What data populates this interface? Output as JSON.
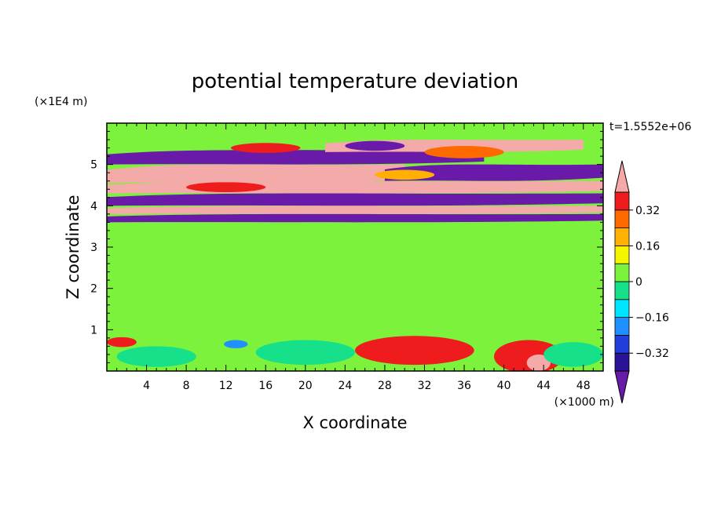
{
  "chart_data": {
    "type": "heatmap",
    "title": "potential temperature deviation",
    "xlabel": "X coordinate",
    "ylabel": "Z coordinate",
    "x_unit": "(×1000 m)",
    "y_unit": "(×1E4 m)",
    "time_label": "t=1.5552e+06",
    "xlim": [
      0,
      50
    ],
    "ylim": [
      0,
      6
    ],
    "x_ticks": [
      4,
      8,
      12,
      16,
      20,
      24,
      28,
      32,
      36,
      40,
      44,
      48
    ],
    "y_ticks": [
      1,
      2,
      3,
      4,
      5
    ],
    "colorbar": {
      "levels": [
        -0.48,
        -0.4,
        -0.32,
        -0.24,
        -0.16,
        -0.08,
        0,
        0.08,
        0.16,
        0.24,
        0.32,
        0.4,
        0.48
      ],
      "tick_labels": [
        "0.32",
        "0.16",
        "0",
        "−0.16",
        "−0.32"
      ],
      "tick_values": [
        0.32,
        0.16,
        0,
        -0.16,
        -0.32
      ],
      "colors": [
        "#6a1aa8",
        "#2a1296",
        "#1f3fd8",
        "#1e90ff",
        "#00e5ff",
        "#16e08a",
        "#7cf23c",
        "#f5f500",
        "#ffb000",
        "#ff6a00",
        "#ee1c1c",
        "#f5aaaa"
      ]
    },
    "bands": [
      {
        "x0": 0,
        "x1": 50,
        "y0": 5.55,
        "y1": 5.8,
        "level": 0.0
      },
      {
        "x0": 0,
        "x1": 38,
        "y0": 5.0,
        "y1": 5.35,
        "level": -0.48
      },
      {
        "x0": 22,
        "x1": 48,
        "y0": 5.3,
        "y1": 5.6,
        "level": 0.48
      },
      {
        "x0": 0,
        "x1": 30,
        "y0": 4.55,
        "y1": 5.0,
        "level": 0.48
      },
      {
        "x0": 28,
        "x1": 50,
        "y0": 4.6,
        "y1": 5.0,
        "level": -0.48
      },
      {
        "x0": 0,
        "x1": 50,
        "y0": 4.3,
        "y1": 4.6,
        "level": 0.48
      },
      {
        "x0": 0,
        "x1": 50,
        "y0": 4.0,
        "y1": 4.3,
        "level": -0.48
      },
      {
        "x0": 0,
        "x1": 50,
        "y0": 3.8,
        "y1": 4.0,
        "level": 0.48
      },
      {
        "x0": 0,
        "x1": 50,
        "y0": 3.6,
        "y1": 3.8,
        "level": -0.48
      },
      {
        "x0": 0,
        "x1": 50,
        "y0": 0.8,
        "y1": 3.6,
        "level": 0.0
      },
      {
        "x0": 0,
        "x1": 50,
        "y0": 0.0,
        "y1": 0.8,
        "level": 0.0
      }
    ],
    "blobs": [
      {
        "x": 1.5,
        "y": 0.7,
        "rx": 1.5,
        "ry": 0.12,
        "level": 0.32
      },
      {
        "x": 5,
        "y": 0.35,
        "rx": 4,
        "ry": 0.25,
        "level": -0.08
      },
      {
        "x": 20,
        "y": 0.45,
        "rx": 5,
        "ry": 0.3,
        "level": -0.08
      },
      {
        "x": 13,
        "y": 0.65,
        "rx": 1.2,
        "ry": 0.1,
        "level": -0.24
      },
      {
        "x": 31,
        "y": 0.5,
        "rx": 6,
        "ry": 0.35,
        "level": 0.32
      },
      {
        "x": 42.5,
        "y": 0.35,
        "rx": 3.5,
        "ry": 0.4,
        "level": 0.32
      },
      {
        "x": 43.5,
        "y": 0.2,
        "rx": 1.2,
        "ry": 0.2,
        "level": 0.4
      },
      {
        "x": 47,
        "y": 0.4,
        "rx": 3,
        "ry": 0.3,
        "level": -0.08
      },
      {
        "x": 27,
        "y": 5.45,
        "rx": 3,
        "ry": 0.12,
        "level": -0.48
      },
      {
        "x": 36,
        "y": 5.3,
        "rx": 4,
        "ry": 0.15,
        "level": 0.24
      },
      {
        "x": 16,
        "y": 5.4,
        "rx": 3.5,
        "ry": 0.12,
        "level": 0.32
      },
      {
        "x": 12,
        "y": 4.45,
        "rx": 4,
        "ry": 0.12,
        "level": 0.32
      },
      {
        "x": 30,
        "y": 4.75,
        "rx": 3,
        "ry": 0.12,
        "level": 0.16
      }
    ]
  }
}
